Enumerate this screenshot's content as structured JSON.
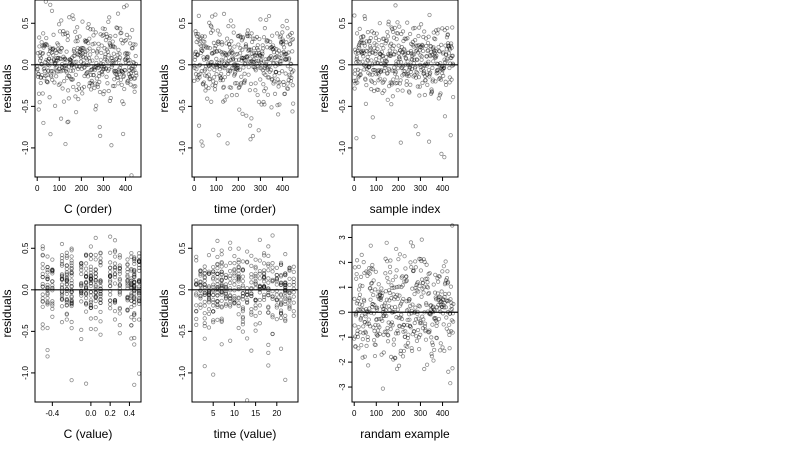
{
  "chart_data": [
    {
      "type": "scatter",
      "xlabel": "C (order)",
      "ylabel": "residuals",
      "xlim": [
        -10,
        470
      ],
      "ylim": [
        -1.35,
        0.78
      ],
      "xticks": [
        0,
        100,
        200,
        300,
        400
      ],
      "yticks": [
        0.5,
        0.0,
        -0.5,
        -1.0
      ],
      "ytick_labels": [
        "0.5",
        "0.0",
        "-0.5",
        "-1.0"
      ],
      "hline": 0,
      "x_kind": "order",
      "seed": 11,
      "n": 450
    },
    {
      "type": "scatter",
      "xlabel": "time (order)",
      "ylabel": "residuals",
      "xlim": [
        -10,
        470
      ],
      "ylim": [
        -1.35,
        0.78
      ],
      "xticks": [
        0,
        100,
        200,
        300,
        400
      ],
      "yticks": [
        0.5,
        0.0,
        -0.5,
        -1.0
      ],
      "ytick_labels": [
        "0.5",
        "0.0",
        "-0.5",
        "-1.0"
      ],
      "hline": 0,
      "x_kind": "order",
      "seed": 23,
      "n": 450
    },
    {
      "type": "scatter",
      "xlabel": "sample index",
      "ylabel": "residuals",
      "xlim": [
        -10,
        470
      ],
      "ylim": [
        -1.35,
        0.78
      ],
      "xticks": [
        0,
        100,
        200,
        300,
        400
      ],
      "yticks": [
        0.5,
        0.0,
        -0.5,
        -1.0
      ],
      "ytick_labels": [
        "0.5",
        "0.0",
        "-0.5",
        "-1.0"
      ],
      "hline": 0,
      "x_kind": "order",
      "seed": 37,
      "n": 450
    },
    {
      "type": "scatter",
      "xlabel": "C (value)",
      "ylabel": "residuals",
      "xlim": [
        -0.58,
        0.52
      ],
      "ylim": [
        -1.35,
        0.78
      ],
      "xticks": [
        -0.4,
        0.0,
        0.2,
        0.4
      ],
      "xtick_labels": [
        "-0.4",
        "0.0",
        "0.2",
        "0.4"
      ],
      "yticks": [
        0.5,
        0.0,
        -0.5,
        -1.0
      ],
      "ytick_labels": [
        "0.5",
        "0.0",
        "-0.5",
        "-1.0"
      ],
      "hline": 0,
      "x_kind": "discrete",
      "x_levels": [
        -0.5,
        -0.45,
        -0.4,
        -0.3,
        -0.25,
        -0.2,
        -0.1,
        -0.05,
        0.0,
        0.05,
        0.1,
        0.2,
        0.25,
        0.3,
        0.38,
        0.42,
        0.45,
        0.5
      ],
      "seed": 41,
      "n": 450
    },
    {
      "type": "scatter",
      "xlabel": "time (value)",
      "ylabel": "residuals",
      "xlim": [
        0,
        25
      ],
      "ylim": [
        -1.35,
        0.78
      ],
      "xticks": [
        5,
        10,
        15,
        20
      ],
      "yticks": [
        0.5,
        0.0,
        -0.5,
        -1.0
      ],
      "ytick_labels": [
        "0.5",
        "0.0",
        "-0.5",
        "-1.0"
      ],
      "hline": 0,
      "x_kind": "discrete",
      "x_levels": [
        1,
        2,
        3,
        4,
        5,
        6,
        7,
        8,
        9,
        10,
        11,
        12,
        13,
        14,
        15,
        16,
        17,
        18,
        19,
        20,
        21,
        22,
        23,
        24
      ],
      "seed": 53,
      "n": 450
    },
    {
      "type": "scatter",
      "xlabel": "randam example",
      "ylabel": "residuals",
      "xlim": [
        -10,
        470
      ],
      "ylim": [
        -3.6,
        3.5
      ],
      "xticks": [
        0,
        100,
        200,
        300,
        400
      ],
      "yticks": [
        3,
        2,
        1,
        0,
        -1,
        -2,
        -3
      ],
      "ytick_labels": [
        "3",
        "2",
        "1",
        "0",
        "-1",
        "-2",
        "-3"
      ],
      "hline": 0,
      "x_kind": "order",
      "dist": "normal",
      "seed": 67,
      "n": 450
    }
  ]
}
